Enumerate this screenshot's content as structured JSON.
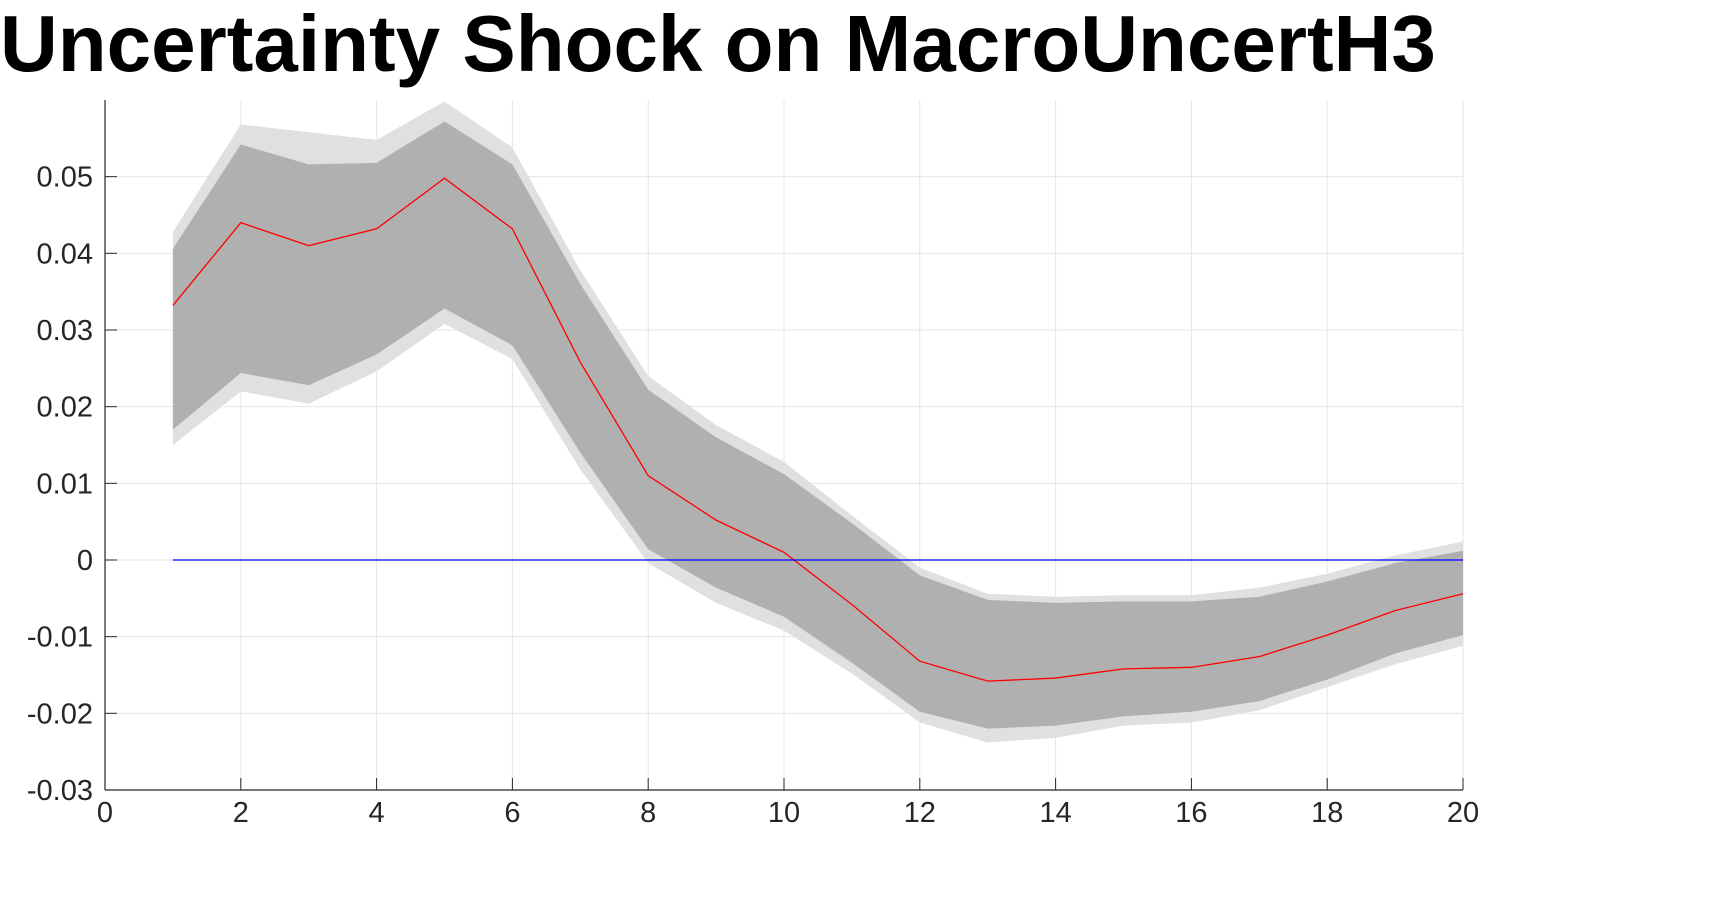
{
  "chart_data": {
    "type": "line",
    "title": "Uncertainty Shock on MacroUncertH3",
    "xlabel": "",
    "ylabel": "",
    "xlim": [
      0,
      20
    ],
    "ylim": [
      -0.03,
      0.06
    ],
    "xticks": [
      0,
      2,
      4,
      6,
      8,
      10,
      12,
      14,
      16,
      18,
      20
    ],
    "xtick_labels": [
      "0",
      "2",
      "4",
      "6",
      "8",
      "10",
      "12",
      "14",
      "16",
      "18",
      "20"
    ],
    "yticks": [
      -0.03,
      -0.02,
      -0.01,
      0,
      0.01,
      0.02,
      0.03,
      0.04,
      0.05
    ],
    "ytick_labels": [
      "-0.03",
      "-0.02",
      "-0.01",
      "0",
      "0.01",
      "0.02",
      "0.03",
      "0.04",
      "0.05"
    ],
    "grid": true,
    "x": [
      1,
      2,
      3,
      4,
      5,
      6,
      7,
      8,
      9,
      10,
      11,
      12,
      13,
      14,
      15,
      16,
      17,
      18,
      19,
      20
    ],
    "series": [
      {
        "role": "outer-band",
        "color": "#e0e0e0",
        "upper": [
          0.0428,
          0.0568,
          0.0558,
          0.0548,
          0.0598,
          0.0538,
          0.0378,
          0.024,
          0.0176,
          0.0128,
          0.0058,
          -0.001,
          -0.0044,
          -0.0048,
          -0.0046,
          -0.0046,
          -0.0036,
          -0.0018,
          0.0006,
          0.0024
        ],
        "lower": [
          0.015,
          0.022,
          0.0204,
          0.0246,
          0.0308,
          0.0262,
          0.0118,
          -0.0004,
          -0.0056,
          -0.0092,
          -0.0148,
          -0.0212,
          -0.0238,
          -0.0232,
          -0.0216,
          -0.0212,
          -0.0196,
          -0.0166,
          -0.0136,
          -0.0112
        ]
      },
      {
        "role": "inner-band",
        "color": "#b0b0b0",
        "upper": [
          0.0406,
          0.0542,
          0.0516,
          0.0518,
          0.0572,
          0.0516,
          0.036,
          0.0222,
          0.016,
          0.0112,
          0.0048,
          -0.002,
          -0.0052,
          -0.0056,
          -0.0054,
          -0.0054,
          -0.0048,
          -0.0028,
          -0.0004,
          0.0012
        ],
        "lower": [
          0.017,
          0.0244,
          0.0228,
          0.0268,
          0.0328,
          0.028,
          0.014,
          0.0014,
          -0.0036,
          -0.0074,
          -0.0134,
          -0.0198,
          -0.022,
          -0.0216,
          -0.0204,
          -0.0198,
          -0.0184,
          -0.0156,
          -0.0122,
          -0.0098
        ]
      },
      {
        "role": "median",
        "color": "#ff0000",
        "values": [
          0.0332,
          0.044,
          0.041,
          0.0432,
          0.0498,
          0.0432,
          0.0258,
          0.011,
          0.0052,
          0.001,
          -0.0058,
          -0.0132,
          -0.0158,
          -0.0154,
          -0.0142,
          -0.014,
          -0.0126,
          -0.0098,
          -0.0066,
          -0.0044
        ]
      },
      {
        "role": "zero-line",
        "color": "#0000ff",
        "values": [
          0,
          0,
          0,
          0,
          0,
          0,
          0,
          0,
          0,
          0,
          0,
          0,
          0,
          0,
          0,
          0,
          0,
          0,
          0,
          0
        ]
      }
    ]
  }
}
